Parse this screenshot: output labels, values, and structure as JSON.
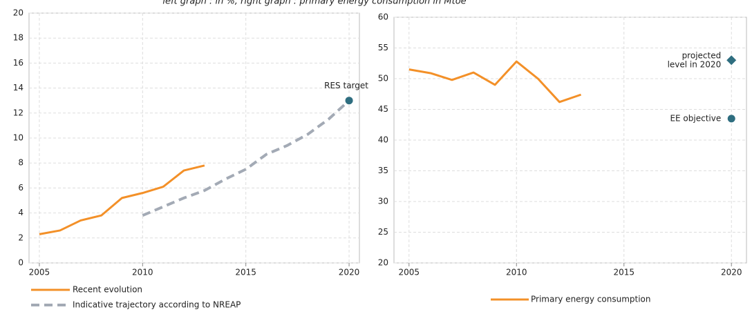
{
  "caption": "left graph : in %, right graph : primary energy consumption in Mtoe",
  "chart_data": [
    {
      "type": "line",
      "xlim": [
        2004.5,
        2020.5
      ],
      "xticks": [
        2005,
        2010,
        2015,
        2020
      ],
      "ylim": [
        0,
        20
      ],
      "yticks": [
        0,
        2,
        4,
        6,
        8,
        10,
        12,
        14,
        16,
        18,
        20
      ],
      "grid": true,
      "series": [
        {
          "name": "Recent evolution",
          "color": "#f39028",
          "dash": false,
          "x": [
            2005,
            2006,
            2007,
            2008,
            2009,
            2010,
            2011,
            2012,
            2013
          ],
          "values": [
            2.3,
            2.6,
            3.4,
            3.8,
            5.2,
            5.6,
            6.1,
            7.4,
            7.8
          ]
        },
        {
          "name": "Indicative trajectory according to NREAP",
          "color": "#a3aab5",
          "dash": true,
          "x": [
            2010,
            2011,
            2012,
            2013,
            2014,
            2015,
            2016,
            2017,
            2018,
            2019,
            2020
          ],
          "values": [
            3.8,
            4.5,
            5.2,
            5.8,
            6.7,
            7.5,
            8.7,
            9.4,
            10.3,
            11.5,
            13.0
          ]
        }
      ],
      "points": [
        {
          "label": [
            "RES target"
          ],
          "x": 2020,
          "y": 13,
          "color": "#2f6e80",
          "marker": "circle"
        }
      ]
    },
    {
      "type": "line",
      "xlim": [
        2004.3,
        2020.7
      ],
      "xticks": [
        2005,
        2010,
        2015,
        2020
      ],
      "ylim": [
        20,
        60
      ],
      "yticks": [
        20,
        25,
        30,
        35,
        40,
        45,
        50,
        55,
        60
      ],
      "grid": true,
      "series": [
        {
          "name": "Primary energy consumption",
          "color": "#f39028",
          "dash": false,
          "x": [
            2005,
            2006,
            2007,
            2008,
            2009,
            2010,
            2011,
            2012,
            2013
          ],
          "values": [
            51.5,
            50.9,
            49.8,
            51.0,
            49.0,
            52.8,
            50.0,
            46.2,
            47.4
          ]
        }
      ],
      "points": [
        {
          "label": [
            "projected",
            "level in 2020"
          ],
          "x": 2020,
          "y": 53,
          "color": "#2f6e80",
          "marker": "diamond"
        },
        {
          "label": [
            "EE objective"
          ],
          "x": 2020,
          "y": 43.5,
          "color": "#2f6e80",
          "marker": "circle"
        }
      ]
    }
  ]
}
